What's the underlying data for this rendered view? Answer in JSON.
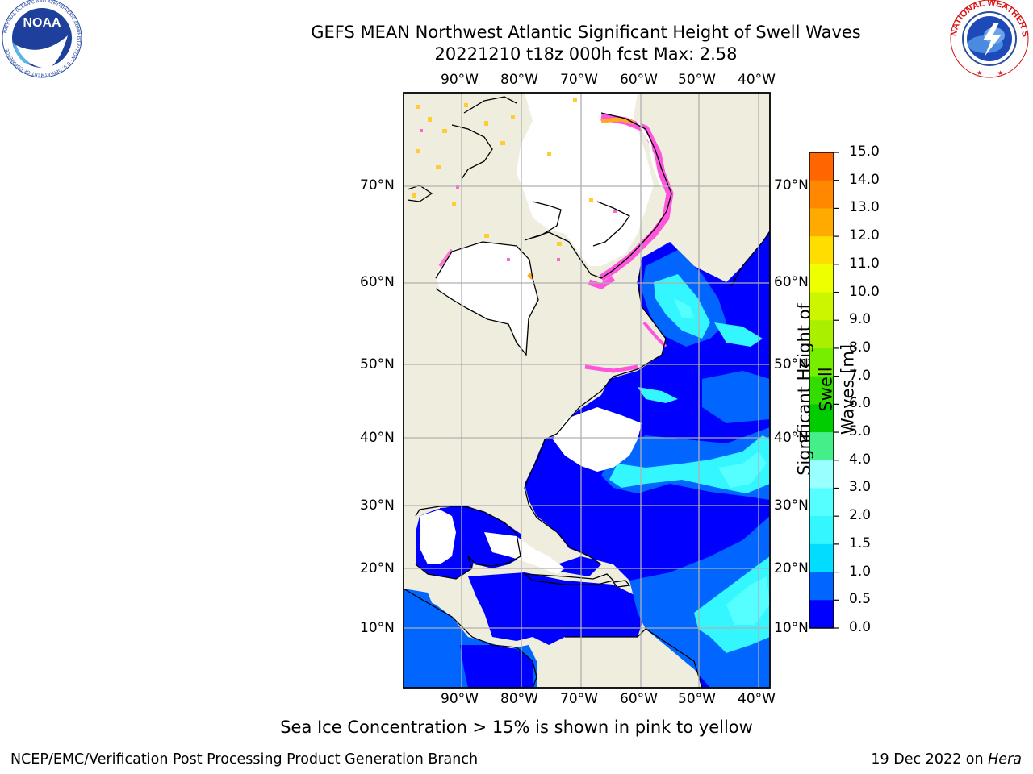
{
  "header": {
    "title_line1": "GEFS MEAN Northwest Atlantic Significant Height of Swell Waves",
    "title_line2": "20221210 t18z 000h fcst   Max: 2.58"
  },
  "logos": {
    "noaa": "NOAA",
    "noaa_ring_text": "NATIONAL OCEANIC AND ATMOSPHERIC ADMINISTRATION · U.S. DEPARTMENT OF COMMERCE",
    "nws_ring_text": "NATIONAL WEATHER SERVICE"
  },
  "map": {
    "lon_labels": [
      "90°W",
      "80°W",
      "70°W",
      "60°W",
      "50°W",
      "40°W"
    ],
    "lat_labels": [
      "70°N",
      "60°N",
      "50°N",
      "40°N",
      "30°N",
      "20°N",
      "10°N"
    ],
    "colors": {
      "land": "#efedde",
      "ice_free_ocean": "#ffffff",
      "coast": "#000000",
      "grid": "#b0b0b0"
    }
  },
  "colorbar": {
    "title": "Significant Height of Swell Waves [m]",
    "title_line1": "Significant Height of Swell",
    "title_line2": "Waves [m]",
    "ticks": [
      "15.0",
      "14.0",
      "13.0",
      "12.0",
      "11.0",
      "10.0",
      "9.0",
      "8.0",
      "7.0",
      "6.0",
      "5.0",
      "4.0",
      "3.0",
      "2.0",
      "1.5",
      "1.0",
      "0.5",
      "0.0"
    ],
    "colors_bottom_to_top": [
      "#0000ff",
      "#0066ff",
      "#00ddff",
      "#33f6ff",
      "#55ffff",
      "#99ffff",
      "#44ee88",
      "#00cc00",
      "#33dd00",
      "#77ee00",
      "#aaee00",
      "#ccf500",
      "#eeff00",
      "#ffdd00",
      "#ffaa00",
      "#ff8800",
      "#ff6600",
      "#ff3300",
      "#ff0000"
    ]
  },
  "footer": {
    "note": "Sea Ice Concentration > 15% is shown in pink to yellow",
    "credit": "NCEP/EMC/Verification Post Processing Product Generation Branch",
    "date_prefix": "19 Dec 2022 on ",
    "machine": "Hera"
  }
}
